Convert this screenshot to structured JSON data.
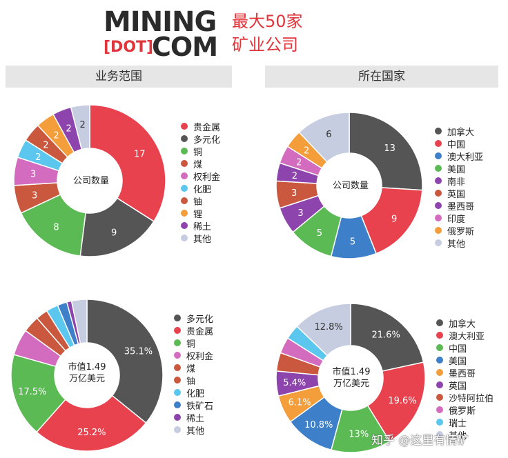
{
  "logo": {
    "line1": "MINING",
    "dot": "[DOT]",
    "com": "COM"
  },
  "headline": {
    "line1": "最大50家",
    "line2": "矿业公司"
  },
  "sections": {
    "left": "业务范围",
    "right": "所在国家"
  },
  "watermark": "知乎 @这里有情矿",
  "chart_data": [
    {
      "type": "pie",
      "center_label": "公司数量",
      "categories": [
        "贵金属",
        "多元化",
        "铜",
        "煤",
        "权利金",
        "化肥",
        "铀",
        "锂",
        "稀土",
        "其他"
      ],
      "values": [
        17,
        9,
        8,
        3,
        3,
        2,
        2,
        2,
        2,
        2
      ],
      "labels": [
        "17",
        "9",
        "8",
        "3",
        "3",
        "2",
        "2",
        "2",
        "2",
        "2"
      ],
      "colors": [
        "#e8424e",
        "#555555",
        "#5cba55",
        "#c9583e",
        "#d36bbf",
        "#5bc6ee",
        "#c9583e",
        "#f39d3b",
        "#8e44ad",
        "#c6cde0"
      ],
      "legend_placement": "right"
    },
    {
      "type": "pie",
      "center_label": "公司数量",
      "categories": [
        "加拿大",
        "中国",
        "澳大利亚",
        "美国",
        "南非",
        "英国",
        "墨西哥",
        "印度",
        "俄罗斯",
        "其他"
      ],
      "values": [
        13,
        9,
        5,
        5,
        3,
        3,
        2,
        2,
        2,
        6
      ],
      "labels": [
        "13",
        "9",
        "5",
        "5",
        "3",
        "3",
        "2",
        "2",
        "2",
        "6"
      ],
      "colors": [
        "#555555",
        "#e8424e",
        "#3e7fc9",
        "#5cba55",
        "#8e44ad",
        "#c9583e",
        "#8e44ad",
        "#d36bbf",
        "#f39d3b",
        "#c6cde0"
      ],
      "legend_placement": "right"
    },
    {
      "type": "pie",
      "center_label": "市值1.49\n万亿美元",
      "categories": [
        "多元化",
        "贵金属",
        "铜",
        "权利金",
        "煤",
        "铀",
        "化肥",
        "铁矿石",
        "稀土",
        "其他"
      ],
      "values": [
        35.1,
        25.2,
        17.5,
        5.5,
        3.5,
        2.5,
        2.5,
        2.0,
        1.0,
        3.2
      ],
      "labels": [
        "35.1%",
        "25.2%",
        "17.5%",
        "",
        "",
        "",
        "",
        "",
        "",
        ""
      ],
      "colors": [
        "#555555",
        "#e8424e",
        "#5cba55",
        "#d36bbf",
        "#c9583e",
        "#c9583e",
        "#5bc6ee",
        "#3e7fc9",
        "#8e44ad",
        "#c6cde0"
      ],
      "legend_placement": "right"
    },
    {
      "type": "pie",
      "center_label": "市值1.49\n万亿美元",
      "categories": [
        "加拿大",
        "澳大利亚",
        "中国",
        "美国",
        "墨西哥",
        "英国",
        "沙特阿拉伯",
        "俄罗斯",
        "瑞士",
        "其他"
      ],
      "values": [
        21.6,
        19.6,
        13,
        10.8,
        6.1,
        5.4,
        4.0,
        3.5,
        3.2,
        12.8
      ],
      "labels": [
        "21.6%",
        "19.6%",
        "13%",
        "10.8%",
        "6.1%",
        "5.4%",
        "",
        "",
        "",
        "12.8%"
      ],
      "colors": [
        "#555555",
        "#e8424e",
        "#5cba55",
        "#3e7fc9",
        "#f39d3b",
        "#8e44ad",
        "#c9583e",
        "#d36bbf",
        "#5bc6ee",
        "#c6cde0"
      ],
      "legend_placement": "right"
    }
  ]
}
